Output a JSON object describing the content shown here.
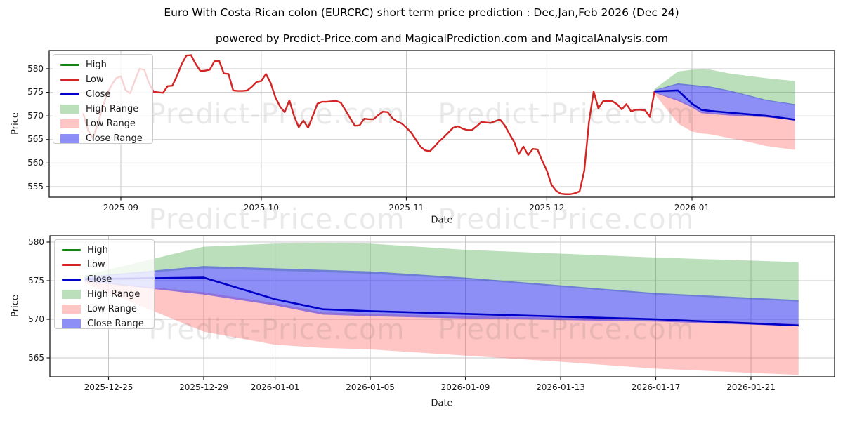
{
  "title": "Euro With Costa Rican colon (EURCRC) short term price prediction : Dec,Jan,Feb 2026 (Dec 24)",
  "subtitle": "powered by Predict-Price.com and MagicalPrediction.com and MagicalAnalysis.com",
  "watermark": {
    "text": "Predict-Price.com",
    "color": "rgba(100,100,100,0.14)"
  },
  "colors": {
    "background": "#ffffff",
    "high_line": "#128212",
    "low_line": "#d42424",
    "close_line": "#0000c8",
    "high_fill": "rgba(60,160,60,0.35)",
    "low_fill": "rgba(255,60,60,0.30)",
    "close_fill": "rgba(30,30,240,0.50)",
    "grid": "#c8c8c8",
    "spine": "#1a1a1a",
    "text": "#000000"
  },
  "legend": {
    "items": [
      {
        "label": "High",
        "swatch": "line",
        "color": "#128212"
      },
      {
        "label": "Low",
        "swatch": "line",
        "color": "#d42424"
      },
      {
        "label": "Close",
        "swatch": "line",
        "color": "#0000c8"
      },
      {
        "label": "High Range",
        "swatch": "patch",
        "color": "rgba(60,160,60,0.35)"
      },
      {
        "label": "Low Range",
        "swatch": "patch",
        "color": "rgba(255,60,60,0.30)"
      },
      {
        "label": "Close Range",
        "swatch": "patch",
        "color": "rgba(30,30,240,0.50)"
      }
    ]
  },
  "chart_data": {
    "type": "line",
    "charts": [
      {
        "name": "historical-with-forecast",
        "ylabel": "Price",
        "xlabel": "Date",
        "ylim": [
          553,
          584
        ],
        "grid": true,
        "legend_position": "upper left",
        "yticks": [
          555,
          560,
          565,
          570,
          575,
          580
        ],
        "xticks": [
          {
            "label": "2025-09",
            "date": "2025-09-01"
          },
          {
            "label": "2025-10",
            "date": "2025-10-01"
          },
          {
            "label": "2025-11",
            "date": "2025-11-01"
          },
          {
            "label": "2025-12",
            "date": "2025-12-01"
          },
          {
            "label": "2026-01",
            "date": "2026-01-01"
          }
        ],
        "series": {
          "low_history": {
            "name": "Low",
            "start_date": "2025-08-24",
            "interval": "daily",
            "values": [
              570.4,
              567.0,
              565.3,
              568.0,
              571.5,
              574.5,
              576.5,
              578.0,
              578.4,
              575.5,
              574.8,
              577.5,
              580.0,
              579.8,
              577.0,
              575.1,
              575.0,
              574.9,
              576.3,
              576.4,
              578.5,
              581.0,
              582.8,
              582.9,
              581.0,
              579.5,
              579.6,
              579.8,
              581.6,
              581.7,
              579.0,
              578.9,
              575.4,
              575.3,
              575.3,
              575.4,
              576.2,
              577.2,
              577.4,
              578.9,
              577.0,
              574.0,
              572.0,
              570.8,
              573.3,
              570.0,
              567.6,
              569.0,
              567.5,
              570.0,
              572.6,
              573.0,
              573.0,
              573.1,
              573.2,
              572.8,
              571.2,
              569.5,
              567.9,
              568.0,
              569.4,
              569.3,
              569.3,
              570.2,
              570.9,
              570.8,
              569.5,
              568.8,
              568.4,
              567.5,
              566.5,
              565.0,
              563.5,
              562.7,
              562.5,
              563.5,
              564.6,
              565.5,
              566.5,
              567.5,
              567.8,
              567.3,
              567.0,
              567.0,
              567.8,
              568.7,
              568.6,
              568.5,
              568.9,
              569.2,
              568.0,
              566.2,
              564.5,
              561.9,
              563.5,
              561.7,
              563.0,
              562.9,
              560.5,
              558.4,
              555.4,
              554.1,
              553.5,
              553.4,
              553.4,
              553.6,
              554.0,
              558.4,
              568.7,
              575.2,
              571.6,
              573.1,
              573.2,
              573.1,
              572.5,
              571.4,
              572.5,
              571.0,
              571.3,
              571.3,
              571.2,
              569.8,
              575.2
            ]
          },
          "forecast": {
            "dates": [
              "2025-12-24",
              "2025-12-29",
              "2026-01-01",
              "2026-01-03",
              "2026-01-05",
              "2026-01-09",
              "2026-01-13",
              "2026-01-17",
              "2026-01-23"
            ],
            "close": [
              575.2,
              575.4,
              572.6,
              571.3,
              571.05,
              570.7,
              570.35,
              570.0,
              569.2
            ],
            "close_range_top": [
              575.5,
              576.9,
              576.6,
              576.4,
              576.2,
              575.4,
              574.4,
              573.4,
              572.5
            ],
            "close_range_bottom": [
              574.9,
              573.2,
              571.8,
              570.6,
              570.4,
              570.1,
              569.9,
              569.7,
              569.1
            ],
            "high_range_top": [
              575.7,
              579.4,
              579.8,
              579.9,
              579.8,
              579.0,
              578.5,
              578.0,
              577.4
            ],
            "high_range_bottom": [
              575.4,
              576.6,
              576.3,
              576.1,
              575.9,
              575.2,
              574.2,
              573.2,
              572.3
            ],
            "low_range_top": [
              575.0,
              573.5,
              572.1,
              570.9,
              570.7,
              570.4,
              570.2,
              570.0,
              569.4
            ],
            "low_range_bottom": [
              574.7,
              568.4,
              566.7,
              566.3,
              566.1,
              565.3,
              564.5,
              563.6,
              562.8
            ]
          }
        }
      },
      {
        "name": "forecast-zoom",
        "ylabel": "Price",
        "xlabel": "Date",
        "ylim": [
          562.3,
          580.9
        ],
        "grid": true,
        "legend_position": "upper left",
        "yticks": [
          565,
          570,
          575,
          580
        ],
        "xticks": [
          {
            "label": "2025-12-25",
            "date": "2025-12-25"
          },
          {
            "label": "2025-12-29",
            "date": "2025-12-29"
          },
          {
            "label": "2026-01-01",
            "date": "2026-01-01"
          },
          {
            "label": "2026-01-05",
            "date": "2026-01-05"
          },
          {
            "label": "2026-01-09",
            "date": "2026-01-09"
          },
          {
            "label": "2026-01-13",
            "date": "2026-01-13"
          },
          {
            "label": "2026-01-17",
            "date": "2026-01-17"
          },
          {
            "label": "2026-01-21",
            "date": "2026-01-21"
          }
        ],
        "series": {
          "forecast": {
            "dates": [
              "2025-12-24",
              "2025-12-29",
              "2026-01-01",
              "2026-01-03",
              "2026-01-05",
              "2026-01-09",
              "2026-01-13",
              "2026-01-17",
              "2026-01-23"
            ],
            "close": [
              575.2,
              575.4,
              572.6,
              571.3,
              571.05,
              570.7,
              570.35,
              570.0,
              569.2
            ],
            "close_range_top": [
              575.5,
              576.9,
              576.6,
              576.4,
              576.2,
              575.4,
              574.4,
              573.4,
              572.5
            ],
            "close_range_bottom": [
              574.9,
              573.2,
              571.8,
              570.6,
              570.4,
              570.1,
              569.9,
              569.7,
              569.1
            ],
            "high_range_top": [
              575.7,
              579.4,
              579.8,
              579.9,
              579.8,
              579.0,
              578.5,
              578.0,
              577.4
            ],
            "high_range_bottom": [
              575.4,
              576.6,
              576.3,
              576.1,
              575.9,
              575.2,
              574.2,
              573.2,
              572.3
            ],
            "low_range_top": [
              575.0,
              573.5,
              572.1,
              570.9,
              570.7,
              570.4,
              570.2,
              570.0,
              569.4
            ],
            "low_range_bottom": [
              574.7,
              568.4,
              566.7,
              566.3,
              566.1,
              565.3,
              564.5,
              563.6,
              562.8
            ]
          }
        }
      }
    ]
  }
}
